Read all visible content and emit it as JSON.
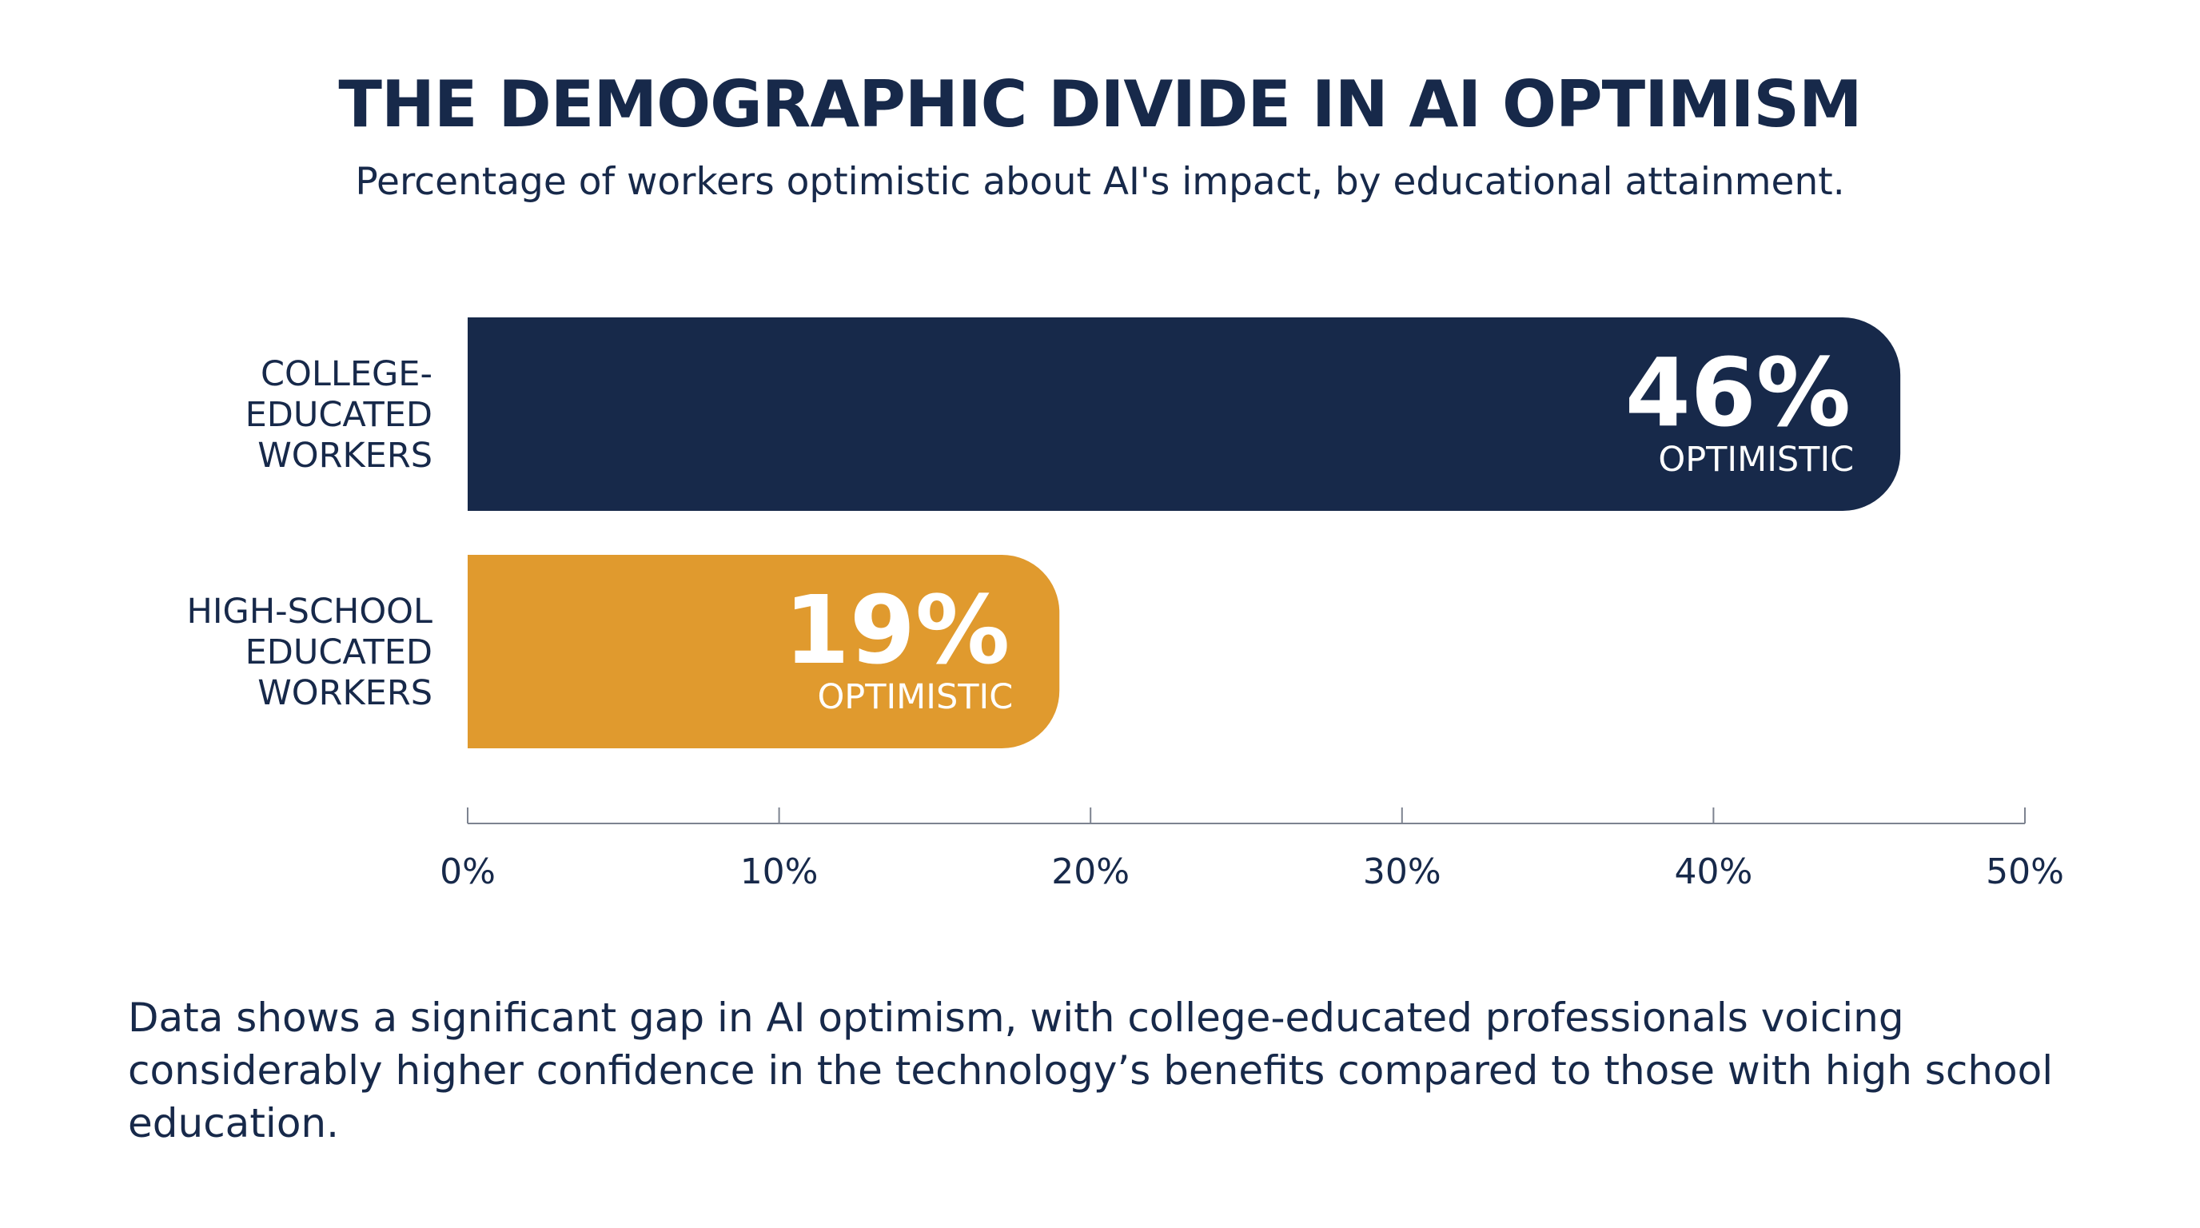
{
  "title": "THE DEMOGRAPHIC DIVIDE IN AI OPTIMISM",
  "subtitle": "Percentage of workers optimistic about AI's impact, by educational attainment.",
  "caption": "Data shows a significant gap in AI optimism, with college-educated professionals voicing considerably higher confidence in the technology’s benefits compared to those with high school education.",
  "chart_data": {
    "type": "bar",
    "orientation": "horizontal",
    "categories": [
      [
        "COLLEGE-",
        "EDUCATED",
        "WORKERS"
      ],
      [
        "HIGH-SCHOOL",
        "EDUCATED",
        "WORKERS"
      ]
    ],
    "values": [
      46,
      19
    ],
    "data_labels": [
      "46%",
      "19%"
    ],
    "data_sublabel": "OPTIMISTIC",
    "colors": [
      "#17294a",
      "#e09a2e"
    ],
    "xlim": [
      0,
      50
    ],
    "xticks": [
      0,
      10,
      20,
      30,
      40,
      50
    ],
    "xtick_labels": [
      "0%",
      "10%",
      "20%",
      "30%",
      "40%",
      "50%"
    ],
    "xlabel": "",
    "ylabel": "",
    "grid": false,
    "legend": false
  }
}
